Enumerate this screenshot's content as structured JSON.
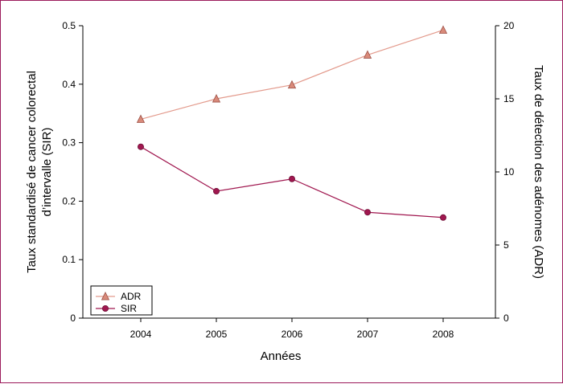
{
  "chart_data": {
    "type": "line",
    "x": [
      "2004",
      "2005",
      "2006",
      "2007",
      "2008"
    ],
    "xlabel": "Années",
    "ylabel_left": [
      "Taux standardisé de cancer colorectal",
      "d’intervalle (SIR)"
    ],
    "ylabel_right": "Taux de détection des adénomes (ADR)",
    "ylim_left": [
      0,
      0.5
    ],
    "yticks_left": [
      "0",
      "0.1",
      "0.2",
      "0.3",
      "0.4",
      "0.5"
    ],
    "ylim_right": [
      0,
      20
    ],
    "yticks_right": [
      "0",
      "5",
      "10",
      "15",
      "20"
    ],
    "grid": false,
    "legend_position": "bottom-left",
    "series": [
      {
        "name": "ADR",
        "axis": "right",
        "marker": "triangle",
        "line_color": "#e39a8c",
        "marker_fill": "#d98a7a",
        "marker_stroke": "#9c4f45",
        "values": [
          13.6,
          15.0,
          15.95,
          18.0,
          19.7
        ]
      },
      {
        "name": "SIR",
        "axis": "left",
        "marker": "circle",
        "line_color": "#a0174f",
        "marker_fill": "#a0174f",
        "marker_stroke": "#6e0f36",
        "values": [
          0.293,
          0.217,
          0.238,
          0.181,
          0.172
        ]
      }
    ]
  },
  "colors": {
    "frame_border": "#9c1b5c",
    "axis": "#000000"
  }
}
